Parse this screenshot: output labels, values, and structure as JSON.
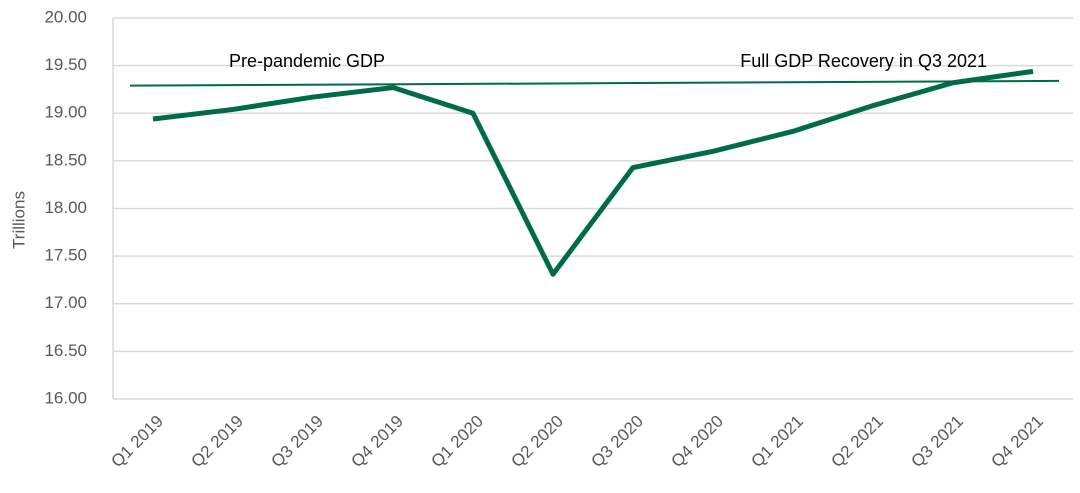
{
  "chart_data": {
    "type": "line",
    "y_axis_label": "Trillions",
    "categories": [
      "Q1 2019",
      "Q2 2019",
      "Q3 2019",
      "Q4 2019",
      "Q1 2020",
      "Q2 2020",
      "Q3 2020",
      "Q4 2020",
      "Q1 2021",
      "Q2 2021",
      "Q3 2021",
      "Q4 2021"
    ],
    "values": [
      18.94,
      19.04,
      19.17,
      19.27,
      19.0,
      17.31,
      18.43,
      18.6,
      18.81,
      19.08,
      19.32,
      19.44
    ],
    "color": "#006b45",
    "reference_line": {
      "start": 19.29,
      "end": 19.34,
      "color": "#006b45"
    },
    "annotations": [
      "Pre-pandemic GDP",
      "Full GDP Recovery in Q3 2021"
    ],
    "ylim": [
      16,
      20
    ],
    "yticks": [
      {
        "value": 16,
        "label": "16.00"
      },
      {
        "value": 16.5,
        "label": "16.50"
      },
      {
        "value": 17,
        "label": "17.00"
      },
      {
        "value": 17.5,
        "label": "17.50"
      },
      {
        "value": 18,
        "label": "18.00"
      },
      {
        "value": 18.5,
        "label": "18.50"
      },
      {
        "value": 19,
        "label": "19.00"
      },
      {
        "value": 19.5,
        "label": "19.50"
      },
      {
        "value": 20,
        "label": "20.00"
      }
    ],
    "grid": true
  }
}
